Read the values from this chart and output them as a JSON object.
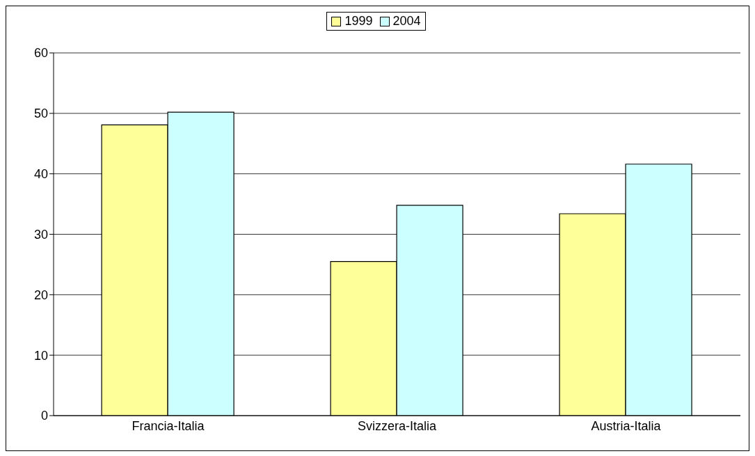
{
  "chart_data": {
    "type": "bar",
    "categories": [
      "Francia-Italia",
      "Svizzera-Italia",
      "Austria-Italia"
    ],
    "series": [
      {
        "name": "1999",
        "color": "#ffff99",
        "values": [
          48.1,
          25.5,
          33.4
        ]
      },
      {
        "name": "2004",
        "color": "#ccffff",
        "values": [
          50.2,
          34.8,
          41.6
        ]
      }
    ],
    "ylim": [
      0,
      60
    ],
    "yticks": [
      0,
      10,
      20,
      30,
      40,
      50,
      60
    ],
    "grid": "y",
    "legend": "top"
  }
}
